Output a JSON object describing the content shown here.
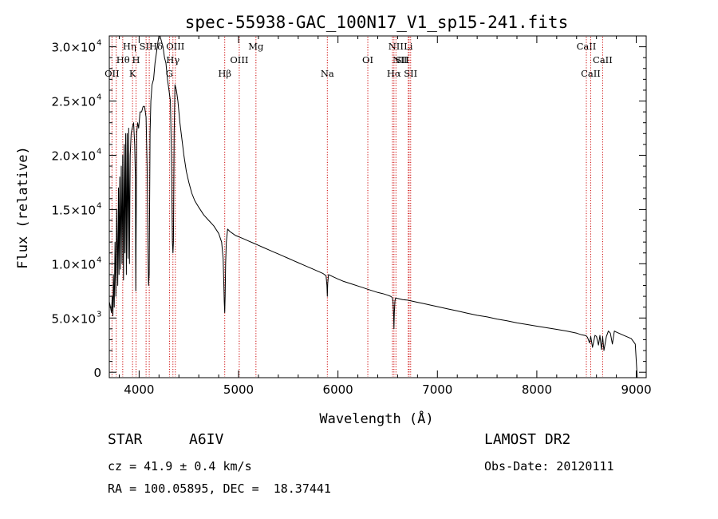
{
  "info": {
    "object_type": "STAR",
    "subclass": "A6IV",
    "survey": "LAMOST DR2",
    "cz": "cz = 41.9 ± 0.4 km/s",
    "obs_date": "Obs-Date: 20120111",
    "radec": "RA = 100.05895, DEC =  18.37441"
  },
  "chart_data": {
    "type": "line",
    "title": "spec-55938-GAC_100N17_V1_sp15-241.fits",
    "xlabel": "Wavelength (Å)",
    "ylabel": "Flux (relative)",
    "xlim": [
      3700,
      9100
    ],
    "ylim": [
      -500,
      31000
    ],
    "x_ticks": [
      4000,
      5000,
      6000,
      7000,
      8000,
      9000
    ],
    "x_tick_labels": [
      "4000",
      "5000",
      "6000",
      "7000",
      "8000",
      "9000"
    ],
    "y_ticks": [
      0,
      5000,
      10000,
      15000,
      20000,
      25000,
      30000
    ],
    "y_tick_labels": [
      {
        "mant": "0",
        "exp": ""
      },
      {
        "mant": "5.0×10",
        "exp": "3"
      },
      {
        "mant": "1.0×10",
        "exp": "4"
      },
      {
        "mant": "1.5×10",
        "exp": "4"
      },
      {
        "mant": "2.0×10",
        "exp": "4"
      },
      {
        "mant": "2.5×10",
        "exp": "4"
      },
      {
        "mant": "3.0×10",
        "exp": "4"
      }
    ],
    "series": [
      {
        "name": "flux",
        "x": [
          3700,
          3712,
          3722,
          3730,
          3736,
          3742,
          3750,
          3758,
          3766,
          3775,
          3785,
          3792,
          3798,
          3805,
          3812,
          3820,
          3828,
          3835,
          3843,
          3850,
          3857,
          3865,
          3872,
          3880,
          3888,
          3895,
          3903,
          3910,
          3920,
          3930,
          3945,
          3955,
          3962,
          3966,
          3971,
          3975,
          3985,
          3995,
          4010,
          4025,
          4040,
          4055,
          4070,
          4080,
          4090,
          4095,
          4101,
          4106,
          4110,
          4118,
          4130,
          4145,
          4160,
          4175,
          4190,
          4200,
          4210,
          4225,
          4240,
          4255,
          4270,
          4285,
          4300,
          4315,
          4325,
          4335,
          4340,
          4345,
          4352,
          4360,
          4375,
          4390,
          4410,
          4430,
          4450,
          4475,
          4500,
          4530,
          4560,
          4600,
          4650,
          4700,
          4750,
          4800,
          4830,
          4845,
          4852,
          4856,
          4861,
          4865,
          4870,
          4877,
          4890,
          4910,
          4940,
          4970,
          5000,
          5050,
          5100,
          5150,
          5200,
          5250,
          5300,
          5350,
          5400,
          5450,
          5500,
          5550,
          5600,
          5650,
          5700,
          5750,
          5800,
          5850,
          5880,
          5889,
          5893,
          5897,
          5905,
          5950,
          6000,
          6050,
          6100,
          6150,
          6200,
          6250,
          6300,
          6350,
          6400,
          6450,
          6500,
          6530,
          6545,
          6553,
          6559,
          6563,
          6567,
          6573,
          6580,
          6600,
          6650,
          6700,
          6750,
          6800,
          6850,
          6900,
          6950,
          7000,
          7100,
          7200,
          7300,
          7400,
          7500,
          7600,
          7700,
          7800,
          7900,
          8000,
          8100,
          8200,
          8300,
          8400,
          8450,
          8480,
          8498,
          8510,
          8530,
          8542,
          8560,
          8585,
          8600,
          8620,
          8635,
          8650,
          8662,
          8675,
          8700,
          8720,
          8740,
          8760,
          8780,
          8800,
          8850,
          8900,
          8950,
          8990,
          9010
        ],
        "y": [
          6500,
          6000,
          5500,
          7000,
          5200,
          9000,
          6000,
          12000,
          7000,
          15000,
          8000,
          17000,
          9000,
          18000,
          9500,
          19000,
          10000,
          20000,
          8500,
          21000,
          11000,
          22000,
          9000,
          22000,
          10500,
          22500,
          10000,
          20000,
          22000,
          22500,
          23000,
          21000,
          18000,
          7500,
          15000,
          22000,
          23000,
          22500,
          24000,
          24000,
          24500,
          24500,
          23500,
          19000,
          11000,
          8000,
          9000,
          16000,
          22000,
          25000,
          26500,
          27000,
          28500,
          29500,
          30500,
          31000,
          31000,
          30500,
          30000,
          29000,
          28500,
          27000,
          26000,
          25000,
          20000,
          12000,
          11000,
          12000,
          22000,
          26500,
          26000,
          25000,
          23000,
          21500,
          20000,
          18500,
          17500,
          16500,
          15800,
          15200,
          14500,
          14000,
          13500,
          12800,
          12000,
          10500,
          8000,
          6500,
          5500,
          7000,
          10000,
          12000,
          13200,
          13000,
          12800,
          12600,
          12500,
          12300,
          12100,
          11900,
          11700,
          11500,
          11300,
          11100,
          10900,
          10700,
          10500,
          10300,
          10100,
          9900,
          9700,
          9500,
          9300,
          9100,
          8900,
          8000,
          7000,
          8200,
          9000,
          8800,
          8600,
          8400,
          8250,
          8100,
          7950,
          7800,
          7650,
          7500,
          7350,
          7250,
          7100,
          7000,
          6900,
          6600,
          5500,
          4000,
          5500,
          6600,
          6850,
          6800,
          6700,
          6650,
          6550,
          6450,
          6350,
          6250,
          6150,
          6050,
          5850,
          5650,
          5450,
          5250,
          5100,
          4900,
          4750,
          4550,
          4400,
          4250,
          4100,
          3950,
          3800,
          3600,
          3450,
          3400,
          3350,
          3200,
          2700,
          3300,
          2300,
          3400,
          3300,
          2500,
          3400,
          2100,
          3300,
          2000,
          3300,
          3800,
          3600,
          2600,
          3800,
          3700,
          3500,
          3300,
          3100,
          2600,
          -500
        ]
      }
    ],
    "line_markers": {
      "color": "#cc0000",
      "lines": [
        {
          "wl": 3727,
          "label": "OII",
          "row": 3,
          "anchor": "middle"
        },
        {
          "wl": 3770,
          "label": "Hθ",
          "row": 2,
          "anchor": "start"
        },
        {
          "wl": 3835,
          "label": "Hη",
          "row": 1,
          "anchor": "start"
        },
        {
          "wl": 3934,
          "label": "K",
          "row": 3,
          "anchor": "middle"
        },
        {
          "wl": 3969,
          "label": "H",
          "row": 2,
          "anchor": "middle"
        },
        {
          "wl": 4070,
          "label": "SII",
          "row": 1,
          "anchor": "middle"
        },
        {
          "wl": 4102,
          "label": "Hδ",
          "row": 1,
          "anchor": "start"
        },
        {
          "wl": 4305,
          "label": "G",
          "row": 3,
          "anchor": "middle"
        },
        {
          "wl": 4340,
          "label": "Hγ",
          "row": 2,
          "anchor": "middle"
        },
        {
          "wl": 4364,
          "label": "OIII",
          "row": 1,
          "anchor": "middle"
        },
        {
          "wl": 4861,
          "label": "Hβ",
          "row": 3,
          "anchor": "middle"
        },
        {
          "wl": 5007,
          "label": "OIII",
          "row": 2,
          "anchor": "middle"
        },
        {
          "wl": 5175,
          "label": "Mg",
          "row": 1,
          "anchor": "middle"
        },
        {
          "wl": 5893,
          "label": "Na",
          "row": 3,
          "anchor": "middle"
        },
        {
          "wl": 6300,
          "label": "OI",
          "row": 2,
          "anchor": "middle"
        },
        {
          "wl": 6548,
          "label": "NII",
          "row": 2,
          "anchor": "start"
        },
        {
          "wl": 6563,
          "label": "Hα",
          "row": 3,
          "anchor": "middle"
        },
        {
          "wl": 6583,
          "label": "NII",
          "row": 1,
          "anchor": "middle"
        },
        {
          "wl": 6707,
          "label": "Li",
          "row": 1,
          "anchor": "middle"
        },
        {
          "wl": 6716,
          "label": "SII",
          "row": 2,
          "anchor": "end"
        },
        {
          "wl": 6731,
          "label": "SII",
          "row": 3,
          "anchor": "middle"
        },
        {
          "wl": 8498,
          "label": "CaII",
          "row": 1,
          "anchor": "middle"
        },
        {
          "wl": 8542,
          "label": "CaII",
          "row": 3,
          "anchor": "middle"
        },
        {
          "wl": 8662,
          "label": "CaII",
          "row": 2,
          "anchor": "middle"
        }
      ]
    }
  }
}
